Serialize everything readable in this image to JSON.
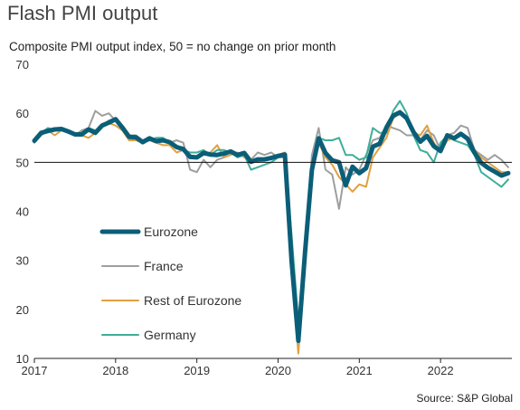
{
  "title": "Flash PMI output",
  "subtitle": "Composite PMI output index, 50 = no change on prior month",
  "source": "Source: S&P Global",
  "chart_data": {
    "type": "line",
    "title": "Flash PMI output",
    "subtitle": "Composite PMI output index, 50 = no change on prior month",
    "xlabel": "",
    "ylabel": "",
    "ylim": [
      10,
      70
    ],
    "yticks": [
      10,
      20,
      30,
      40,
      50,
      60,
      70
    ],
    "xticks": [
      "2017",
      "2018",
      "2019",
      "2020",
      "2021",
      "2022"
    ],
    "xrange": [
      "2017-01",
      "2022-11"
    ],
    "reference_line": 50,
    "grid": false,
    "legend_position": "center-left",
    "x": [
      "2017-01",
      "2017-02",
      "2017-03",
      "2017-04",
      "2017-05",
      "2017-06",
      "2017-07",
      "2017-08",
      "2017-09",
      "2017-10",
      "2017-11",
      "2017-12",
      "2018-01",
      "2018-02",
      "2018-03",
      "2018-04",
      "2018-05",
      "2018-06",
      "2018-07",
      "2018-08",
      "2018-09",
      "2018-10",
      "2018-11",
      "2018-12",
      "2019-01",
      "2019-02",
      "2019-03",
      "2019-04",
      "2019-05",
      "2019-06",
      "2019-07",
      "2019-08",
      "2019-09",
      "2019-10",
      "2019-11",
      "2019-12",
      "2020-01",
      "2020-02",
      "2020-03",
      "2020-04",
      "2020-05",
      "2020-06",
      "2020-07",
      "2020-08",
      "2020-09",
      "2020-10",
      "2020-11",
      "2020-12",
      "2021-01",
      "2021-02",
      "2021-03",
      "2021-04",
      "2021-05",
      "2021-06",
      "2021-07",
      "2021-08",
      "2021-09",
      "2021-10",
      "2021-11",
      "2021-12",
      "2022-01",
      "2022-02",
      "2022-03",
      "2022-04",
      "2022-05",
      "2022-06",
      "2022-07",
      "2022-08",
      "2022-09",
      "2022-10",
      "2022-11"
    ],
    "series": [
      {
        "name": "France",
        "color": "#9e9e9e",
        "width": 2,
        "values": [
          54.0,
          55.5,
          57.0,
          56.5,
          56.5,
          56.0,
          55.5,
          56.5,
          57.0,
          60.5,
          59.5,
          60.0,
          58.5,
          57.0,
          55.5,
          55.5,
          54.5,
          55.0,
          54.5,
          55.0,
          54.0,
          54.5,
          54.0,
          48.5,
          48.0,
          50.5,
          49.0,
          50.5,
          51.0,
          52.5,
          51.5,
          51.5,
          50.5,
          52.0,
          51.5,
          52.0,
          51.0,
          51.0,
          29.0,
          11.5,
          32.0,
          51.5,
          57.0,
          48.5,
          47.5,
          40.5,
          49.0,
          47.5,
          48.5,
          51.5,
          54.5,
          55.0,
          57.5,
          57.0,
          56.5,
          55.5,
          55.5,
          54.5,
          56.5,
          55.5,
          52.5,
          55.5,
          56.0,
          57.5,
          57.0,
          52.5,
          51.5,
          50.5,
          51.5,
          50.5,
          49.0
        ]
      },
      {
        "name": "Rest of Eurozone",
        "color": "#e0a040",
        "width": 2,
        "values": [
          54.5,
          55.5,
          56.5,
          55.5,
          56.5,
          56.5,
          56.0,
          55.5,
          55.0,
          56.0,
          57.5,
          58.0,
          57.5,
          56.5,
          54.5,
          54.5,
          54.0,
          54.5,
          54.0,
          53.5,
          53.5,
          52.0,
          52.5,
          51.5,
          51.0,
          51.5,
          52.0,
          53.5,
          51.0,
          51.5,
          52.0,
          51.0,
          50.5,
          50.0,
          50.5,
          51.0,
          51.5,
          52.0,
          28.0,
          11.0,
          30.0,
          48.0,
          54.0,
          51.0,
          49.5,
          47.0,
          45.5,
          44.0,
          45.5,
          45.0,
          51.0,
          53.0,
          55.0,
          59.0,
          60.0,
          59.5,
          56.0,
          55.5,
          57.5,
          54.0,
          52.0,
          54.5,
          55.0,
          55.5,
          54.5,
          52.5,
          51.0,
          50.0,
          49.0,
          48.0,
          48.0
        ]
      },
      {
        "name": "Germany",
        "color": "#3fae98",
        "width": 2,
        "values": [
          54.5,
          56.0,
          57.0,
          56.5,
          57.0,
          56.5,
          55.5,
          55.5,
          57.0,
          56.5,
          57.5,
          58.5,
          59.0,
          57.5,
          55.0,
          55.5,
          54.0,
          54.5,
          55.0,
          55.0,
          54.0,
          53.5,
          52.5,
          52.0,
          52.0,
          52.5,
          51.5,
          52.5,
          52.5,
          52.0,
          51.0,
          51.5,
          48.5,
          49.0,
          49.5,
          50.0,
          51.0,
          51.5,
          35.0,
          17.5,
          32.5,
          47.5,
          55.0,
          54.5,
          54.5,
          55.0,
          51.5,
          51.5,
          50.5,
          51.0,
          57.0,
          56.0,
          56.0,
          60.5,
          62.5,
          60.0,
          55.5,
          52.5,
          52.0,
          50.0,
          54.0,
          55.5,
          54.5,
          54.0,
          53.5,
          51.5,
          48.0,
          47.0,
          46.0,
          45.0,
          46.5
        ]
      },
      {
        "name": "Eurozone",
        "color": "#0b5e78",
        "width": 5,
        "values": [
          54.4,
          56.0,
          56.4,
          56.7,
          56.8,
          56.3,
          55.7,
          55.7,
          56.7,
          56.0,
          57.5,
          58.1,
          58.8,
          57.1,
          55.2,
          55.1,
          54.1,
          54.9,
          54.3,
          54.5,
          54.1,
          53.1,
          52.7,
          51.1,
          51.0,
          51.9,
          51.6,
          51.5,
          51.8,
          52.2,
          51.5,
          51.9,
          50.1,
          50.6,
          50.6,
          50.9,
          51.3,
          51.6,
          29.7,
          13.6,
          31.9,
          48.5,
          54.9,
          51.9,
          50.4,
          50.0,
          45.3,
          49.1,
          47.8,
          48.8,
          53.2,
          53.8,
          57.1,
          59.5,
          60.2,
          59.0,
          56.2,
          54.2,
          55.4,
          53.3,
          52.3,
          55.5,
          54.9,
          55.8,
          54.8,
          52.0,
          49.9,
          48.9,
          48.1,
          47.3,
          47.8
        ]
      }
    ]
  },
  "legend": {
    "items": [
      {
        "label": "Eurozone",
        "color": "#0b5e78",
        "width": 5
      },
      {
        "label": "France",
        "color": "#9e9e9e",
        "width": 2
      },
      {
        "label": "Rest of Eurozone",
        "color": "#e0a040",
        "width": 2
      },
      {
        "label": "Germany",
        "color": "#3fae98",
        "width": 2
      }
    ]
  }
}
